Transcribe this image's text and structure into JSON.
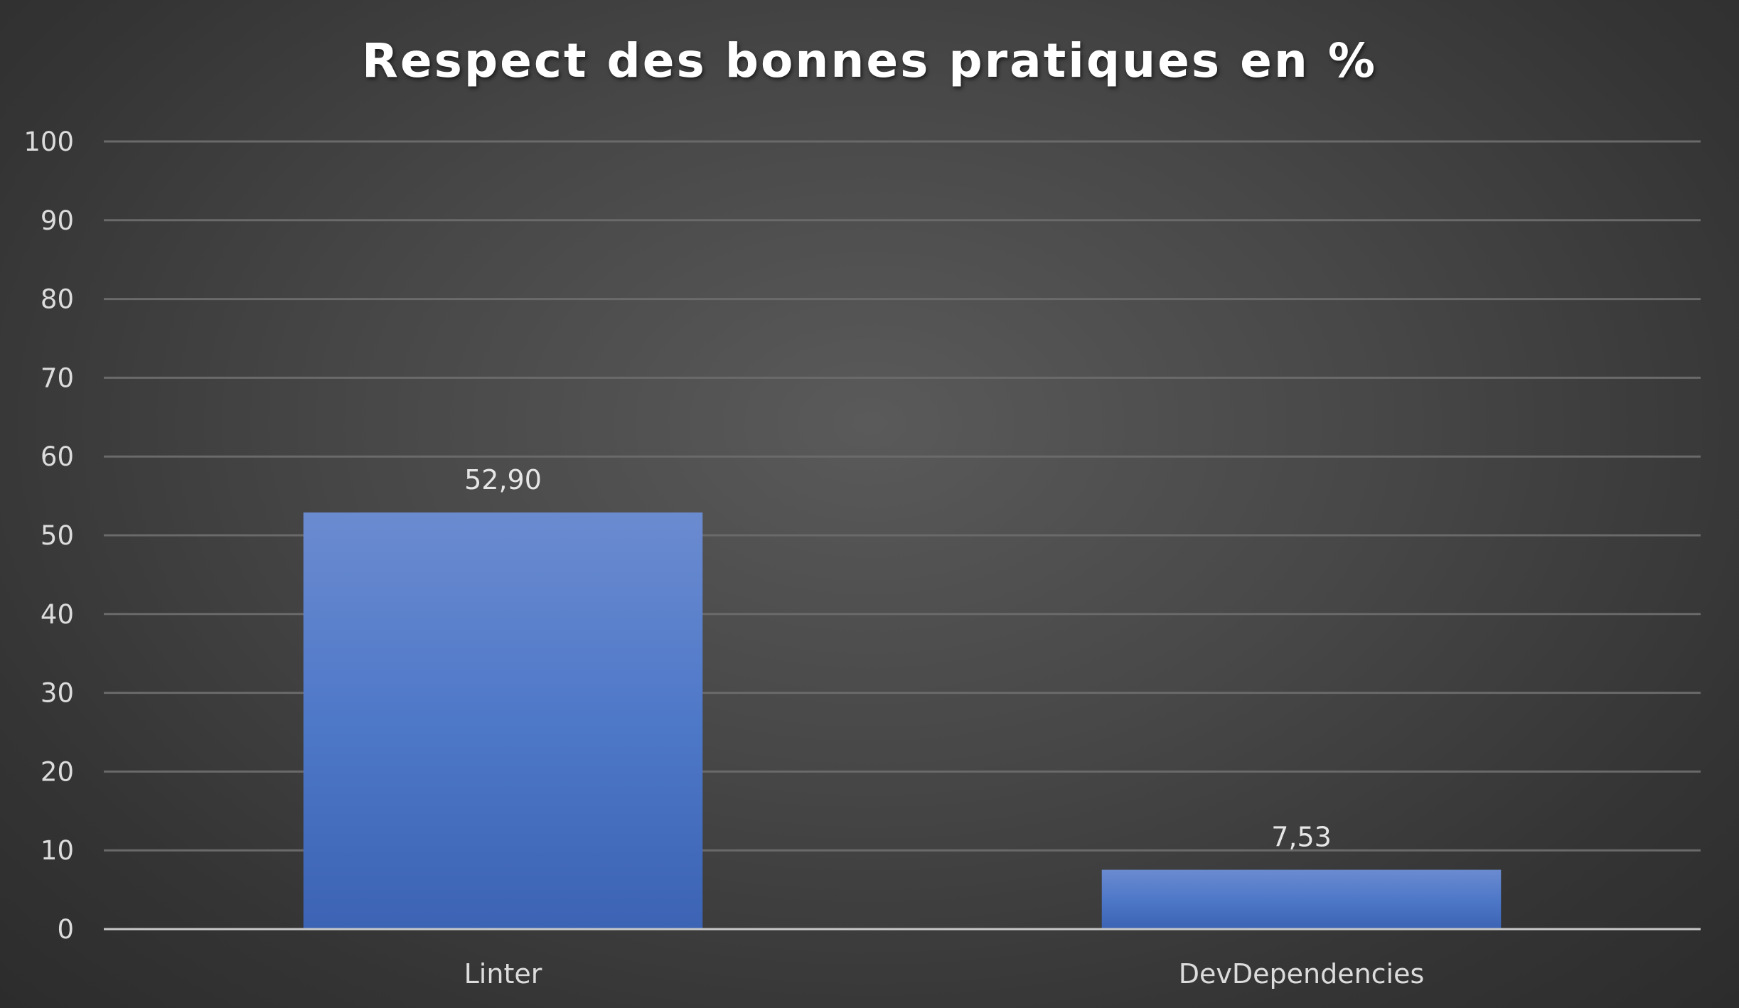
{
  "chart_data": {
    "type": "bar",
    "title": "Respect des bonnes pratiques en %",
    "categories": [
      "Linter",
      "DevDependencies"
    ],
    "values": [
      52.9,
      7.53
    ],
    "data_labels": [
      "52,90",
      "7,53"
    ],
    "ylim": [
      0,
      100
    ],
    "yticks": [
      "0",
      "10",
      "20",
      "30",
      "40",
      "50",
      "60",
      "70",
      "80",
      "90",
      "100"
    ],
    "xlabel": "",
    "ylabel": "",
    "grid": true,
    "legend": "none",
    "bar_color": "#4472c4",
    "background_color": "#3a3a3a"
  }
}
